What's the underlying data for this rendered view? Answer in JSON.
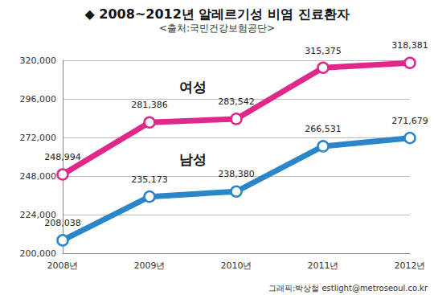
{
  "chart_data": {
    "type": "line",
    "title": "◆ 2008~2012년 알레르기성 비염 진료환자",
    "subtitle": "<출처:국민건강보험공단>",
    "annotations": [
      "그래픽:박상철 estlight@metroseoul.co.kr"
    ],
    "categories": [
      "2008년",
      "2009년",
      "2010년",
      "2011년",
      "2012년"
    ],
    "series": [
      {
        "name": "여성",
        "color": "#e0288a",
        "marker": "circle",
        "values": [
          248994,
          281386,
          283542,
          315375,
          318381
        ],
        "value_labels": [
          "248,994",
          "281,386",
          "283,542",
          "315,375",
          "318,381"
        ]
      },
      {
        "name": "남성",
        "color": "#2a86c8",
        "marker": "circle",
        "values": [
          208038,
          235173,
          238380,
          266531,
          271679
        ],
        "value_labels": [
          "208,038",
          "235,173",
          "238,380",
          "266,531",
          "271,679"
        ]
      }
    ],
    "ylim": [
      200000,
      320000
    ],
    "yticks": [
      {
        "value": 200000,
        "label": "200,000"
      },
      {
        "value": 224000,
        "label": "224,000"
      },
      {
        "value": 248000,
        "label": "248,000"
      },
      {
        "value": 272000,
        "label": "272,000"
      },
      {
        "value": 296000,
        "label": "296,000"
      },
      {
        "value": 320000,
        "label": "320,000"
      }
    ],
    "grid": true,
    "data_labels": true
  }
}
